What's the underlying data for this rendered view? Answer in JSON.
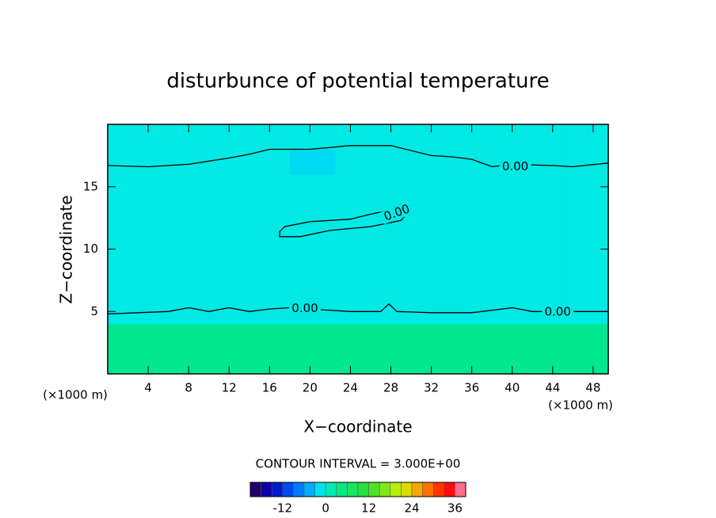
{
  "chart_data": {
    "type": "contour",
    "title": "disturbunce of potential temperature",
    "x_label": "X−coordinate",
    "y_label": "Z−coordinate",
    "x_unit": "(×1000 m)",
    "y_unit": "(×1000 m)",
    "xlim": [
      0,
      49.5
    ],
    "ylim": [
      0,
      20
    ],
    "xticks": [
      4,
      8,
      12,
      16,
      20,
      24,
      28,
      32,
      36,
      40,
      44,
      48
    ],
    "yticks": [
      5,
      10,
      15
    ],
    "x": [
      2.25,
      6.75,
      11.25,
      15.75,
      20.25,
      24.75,
      29.25,
      33.75,
      38.25,
      42.75,
      47.25
    ],
    "y": [
      1,
      3,
      5,
      7,
      9,
      11,
      13,
      15,
      17,
      19
    ],
    "z": [
      [
        3,
        3,
        3,
        3,
        3,
        3,
        3,
        3,
        3,
        3,
        3
      ],
      [
        3,
        3,
        3,
        3,
        3,
        3,
        3,
        3,
        3,
        3,
        3
      ],
      [
        -1,
        -1,
        -1,
        -1,
        -1,
        -1,
        -1,
        -1,
        -1,
        -1,
        -1
      ],
      [
        -1,
        -1,
        -1,
        -1,
        -1,
        -1,
        -1,
        -1,
        -1,
        -1,
        -1
      ],
      [
        -1,
        -1,
        -1,
        -1,
        -1,
        -1,
        -1,
        -1,
        -1,
        -1,
        -1
      ],
      [
        -1,
        -1,
        -1,
        -1,
        -1,
        -1,
        -1,
        -1,
        -1,
        -1,
        -1
      ],
      [
        -1,
        -1,
        -1,
        -1,
        -1,
        -1,
        -1,
        -1,
        -1,
        -1,
        -1
      ],
      [
        -1,
        -1,
        -1,
        -1,
        -1,
        -1,
        -1,
        -1,
        -1,
        -1,
        -1
      ],
      [
        -1,
        -1,
        -1,
        -1,
        -2,
        -1,
        -1,
        -1,
        -1,
        -1,
        -1
      ],
      [
        -1,
        -1,
        -1,
        -1,
        -1,
        -1,
        -1,
        -1,
        -1,
        -1,
        -1
      ]
    ],
    "contours": [
      {
        "level": 0,
        "value_label": "0.00",
        "x": [
          0,
          3,
          6,
          8,
          10,
          12,
          14,
          16,
          18,
          20,
          24,
          27,
          27.8,
          28.6,
          32,
          36,
          38,
          40,
          42,
          46,
          49.5
        ],
        "y": [
          4.8,
          4.9,
          5.0,
          5.3,
          5.0,
          5.3,
          5.0,
          5.2,
          5.3,
          5.2,
          5.0,
          5.0,
          5.6,
          5.0,
          4.9,
          4.9,
          5.1,
          5.3,
          5.0,
          5.0,
          5.0
        ]
      },
      {
        "level": 0,
        "value_label": "0.00",
        "x": [
          0,
          4,
          8,
          12,
          14,
          16,
          20,
          24,
          28,
          32,
          34,
          36,
          38,
          40,
          44,
          46,
          49.5
        ],
        "y": [
          16.7,
          16.6,
          16.8,
          17.3,
          17.6,
          18,
          18,
          18.3,
          18.3,
          17.5,
          17.4,
          17.2,
          16.6,
          16.8,
          16.7,
          16.6,
          16.9
        ]
      },
      {
        "level": 0,
        "value_label": "0.00",
        "x": [
          17,
          17.5,
          20,
          24,
          26,
          29,
          30,
          29,
          26,
          22,
          19,
          17,
          17
        ],
        "y": [
          11.4,
          11.8,
          12.2,
          12.4,
          12.8,
          13.3,
          13.2,
          12.3,
          11.8,
          11.5,
          11.0,
          11.0,
          11.4
        ]
      }
    ],
    "contour_interval": {
      "value": 3,
      "label": "CONTOUR INTERVAL = 3.000E+00"
    },
    "colorbar": {
      "clim": [
        -21,
        39
      ],
      "ticks": [
        -12,
        0,
        12,
        24,
        36
      ]
    }
  }
}
